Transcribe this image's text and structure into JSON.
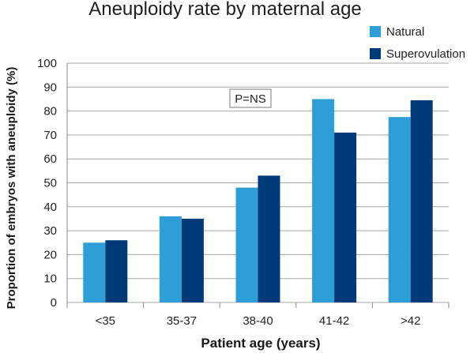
{
  "chart_data": {
    "type": "bar",
    "title": "Aneuploidy rate by maternal age",
    "xlabel": "Patient age (years)",
    "ylabel": "Proportion of embryos with aneuploidy (%)",
    "categories": [
      "<35",
      "35-37",
      "38-40",
      "41-42",
      ">42"
    ],
    "series": [
      {
        "name": "Natural",
        "color": "#2e9fd6",
        "values": [
          25,
          36,
          48,
          85,
          77.5
        ]
      },
      {
        "name": "Superovulation",
        "color": "#003a78",
        "values": [
          26,
          35,
          53,
          71,
          84.5
        ]
      }
    ],
    "ylim": [
      0,
      100
    ],
    "yticks": [
      0,
      10,
      20,
      30,
      40,
      50,
      60,
      70,
      80,
      90,
      100
    ],
    "grid": true,
    "legend": "top-right",
    "annotation": "P=NS"
  },
  "colors": {
    "grid": "#a6a6a6",
    "axis": "#888888"
  }
}
